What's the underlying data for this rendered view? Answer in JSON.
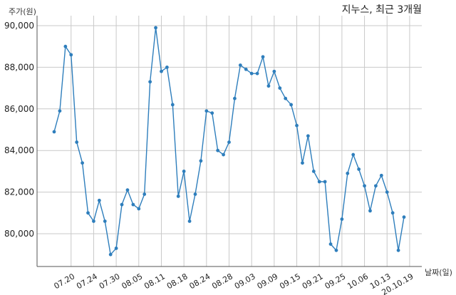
{
  "chart_data": {
    "type": "line",
    "title": "지누스, 최근 3개월",
    "ylabel": "주가(원)",
    "xlabel": "날짜(일)",
    "ylim": [
      78500,
      90500
    ],
    "yticks": [
      80000,
      82000,
      84000,
      86000,
      88000,
      90000
    ],
    "ytick_labels": [
      "80,000",
      "82,000",
      "84,000",
      "86,000",
      "88,000",
      "90,000"
    ],
    "xtick_labels": [
      "07.20",
      "07.24",
      "07.30",
      "08.05",
      "08.11",
      "08.18",
      "08.24",
      "08.28",
      "09.03",
      "09.09",
      "09.15",
      "09.21",
      "09.25",
      "10.06",
      "10.13",
      "20.10.19"
    ],
    "xtick_index": [
      3,
      7,
      11,
      15,
      19,
      23,
      27,
      31,
      35,
      39,
      43,
      47,
      51,
      55,
      59,
      63
    ],
    "grid": true,
    "color": "#2e7ebc",
    "series": [
      {
        "values": [
          84900,
          85900,
          89000,
          88600,
          84400,
          83400,
          81000,
          80600,
          81600,
          80600,
          79000,
          79300,
          81400,
          82100,
          81400,
          81200,
          81900,
          87300,
          89900,
          87800,
          88000,
          86200,
          81800,
          83000,
          80600,
          81900,
          83500,
          85900,
          85800,
          84000,
          83800,
          84400,
          86500,
          88100,
          87900,
          87700,
          87700,
          88500,
          87100,
          87800,
          87000,
          86500,
          86200,
          85200,
          83400,
          84700,
          83000,
          82500,
          82500,
          79500,
          79200,
          80700,
          82900,
          83800,
          83100,
          82300,
          81100,
          82300,
          82800,
          82000,
          81000,
          79200,
          80800
        ]
      }
    ]
  }
}
